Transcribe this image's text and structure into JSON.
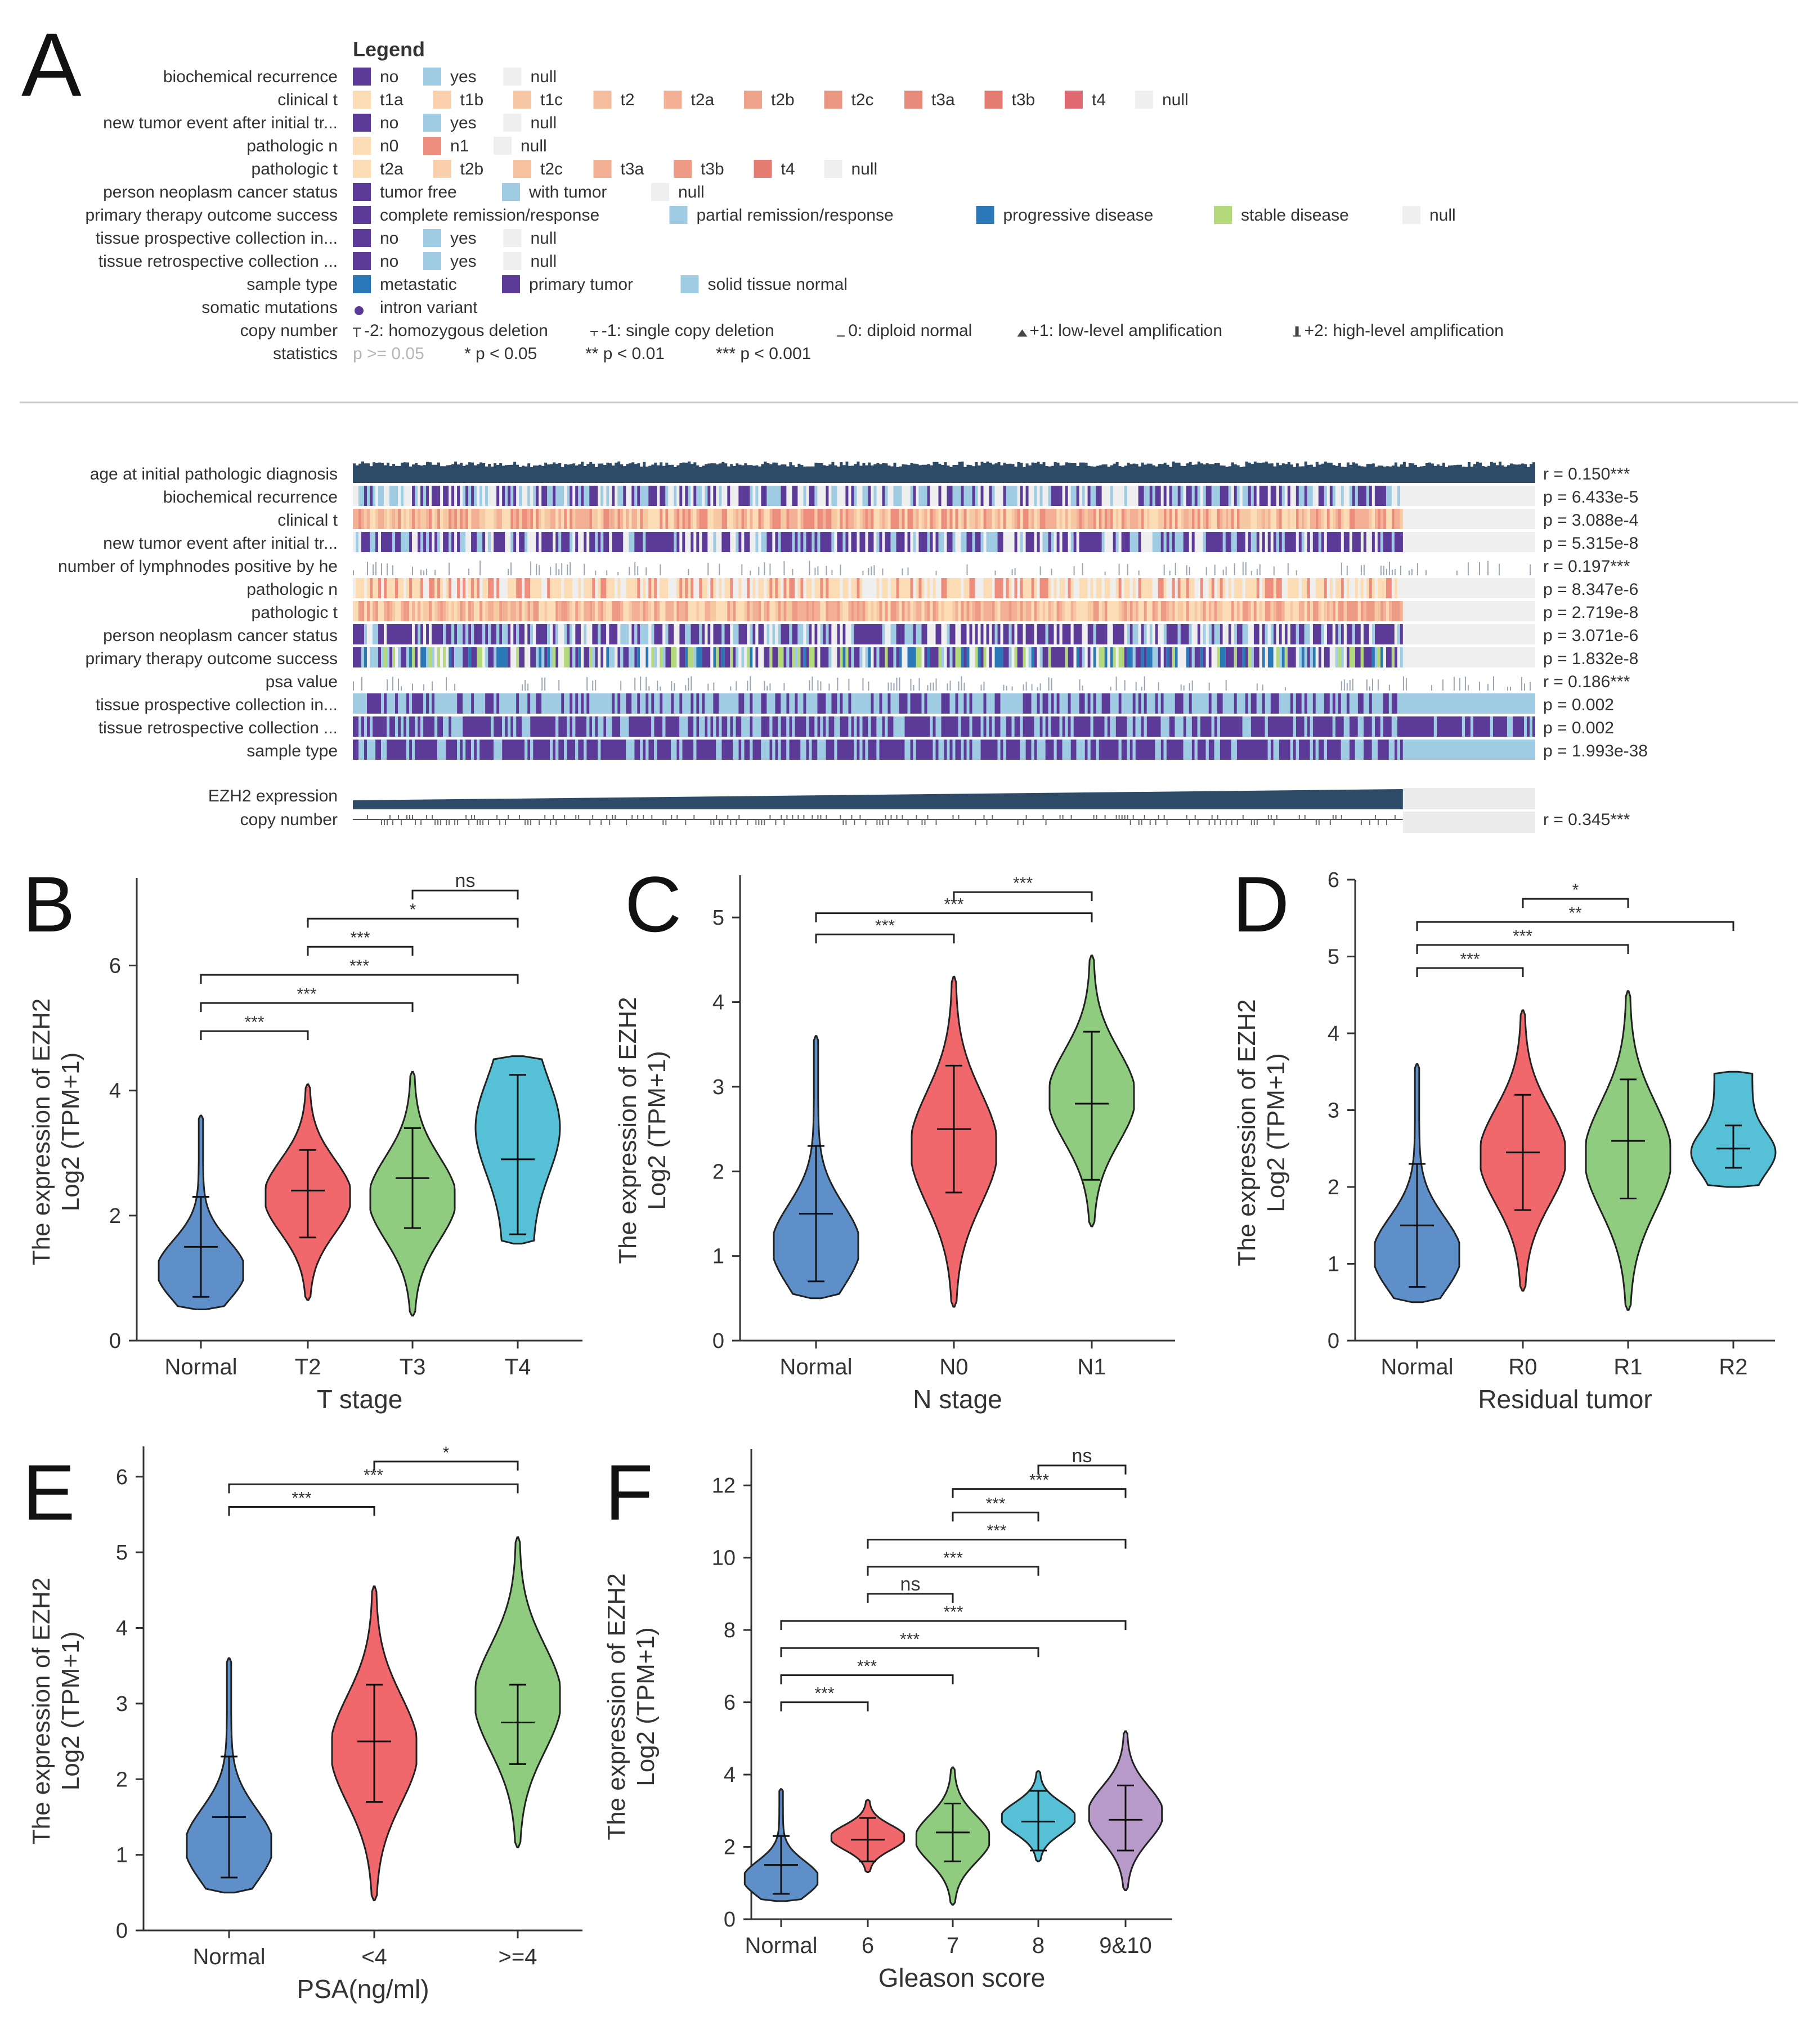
{
  "colors": {
    "purple": "#5b3a98",
    "light_blue": "#9fcbe3",
    "null": "#efefef",
    "dark_blue": "#2a78b8",
    "green_lite": "#b3d97a",
    "peach1": "#fbdcb5",
    "peach2": "#f7c9a3",
    "peach3": "#f4b38e",
    "salmon1": "#f0a08a",
    "salmon2": "#ec8d7d",
    "salmon3": "#e57c73",
    "red1": "#e46c72",
    "red2": "#e05d66",
    "navy": "#2d4a66",
    "violin_normal": "#5e8fc9",
    "violin_red": "#f0686b",
    "violin_green": "#8fcc7f",
    "violin_cyan": "#55c0d6",
    "violin_purple": "#b79ac9"
  },
  "panelA": {
    "label": "A",
    "legend_title": "Legend",
    "legend_rows": [
      {
        "name": "biochemical recurrence",
        "items": [
          {
            "label": "no",
            "color": "#5b3a98"
          },
          {
            "label": "yes",
            "color": "#9fcbe3"
          },
          {
            "label": "null",
            "color": "#efefef"
          }
        ]
      },
      {
        "name": "clinical t",
        "items": [
          {
            "label": "t1a",
            "color": "#fbdcb5"
          },
          {
            "label": "t1b",
            "color": "#fbd1ad"
          },
          {
            "label": "t1c",
            "color": "#f8c7a5"
          },
          {
            "label": "t2",
            "color": "#f5bc9d"
          },
          {
            "label": "t2a",
            "color": "#f3b094"
          },
          {
            "label": "t2b",
            "color": "#f0a48c"
          },
          {
            "label": "t2c",
            "color": "#ec9784"
          },
          {
            "label": "t3a",
            "color": "#e88a7c"
          },
          {
            "label": "t3b",
            "color": "#e57c74"
          },
          {
            "label": "t4",
            "color": "#e06870"
          },
          {
            "label": "null",
            "color": "#efefef"
          }
        ]
      },
      {
        "name": "new tumor event after initial tr...",
        "items": [
          {
            "label": "no",
            "color": "#5b3a98"
          },
          {
            "label": "yes",
            "color": "#9fcbe3"
          },
          {
            "label": "null",
            "color": "#efefef"
          }
        ]
      },
      {
        "name": "pathologic n",
        "items": [
          {
            "label": "n0",
            "color": "#fbdcb5"
          },
          {
            "label": "n1",
            "color": "#ec8d7d"
          },
          {
            "label": "null",
            "color": "#efefef"
          }
        ]
      },
      {
        "name": "pathologic t",
        "items": [
          {
            "label": "t2a",
            "color": "#fbdcb5"
          },
          {
            "label": "t2b",
            "color": "#f9cfab"
          },
          {
            "label": "t2c",
            "color": "#f6c2a0"
          },
          {
            "label": "t3a",
            "color": "#f3b094"
          },
          {
            "label": "t3b",
            "color": "#ee9b86"
          },
          {
            "label": "t4",
            "color": "#e57c74"
          },
          {
            "label": "null",
            "color": "#efefef"
          }
        ]
      },
      {
        "name": "person neoplasm cancer status",
        "items": [
          {
            "label": "tumor free",
            "color": "#5b3a98"
          },
          {
            "label": "with tumor",
            "color": "#9fcbe3"
          },
          {
            "label": "null",
            "color": "#efefef"
          }
        ]
      },
      {
        "name": "primary therapy outcome success",
        "items": [
          {
            "label": "complete remission/response",
            "color": "#5b3a98"
          },
          {
            "label": "partial remission/response",
            "color": "#9fcbe3"
          },
          {
            "label": "progressive disease",
            "color": "#2a78b8"
          },
          {
            "label": "stable disease",
            "color": "#b3d97a"
          },
          {
            "label": "null",
            "color": "#efefef"
          }
        ]
      },
      {
        "name": "tissue prospective collection in...",
        "items": [
          {
            "label": "no",
            "color": "#5b3a98"
          },
          {
            "label": "yes",
            "color": "#9fcbe3"
          },
          {
            "label": "null",
            "color": "#efefef"
          }
        ]
      },
      {
        "name": "tissue retrospective collection ...",
        "items": [
          {
            "label": "no",
            "color": "#5b3a98"
          },
          {
            "label": "yes",
            "color": "#9fcbe3"
          },
          {
            "label": "null",
            "color": "#efefef"
          }
        ]
      },
      {
        "name": "sample type",
        "items": [
          {
            "label": "metastatic",
            "color": "#2a78b8"
          },
          {
            "label": "primary tumor",
            "color": "#5b3a98"
          },
          {
            "label": "solid tissue normal",
            "color": "#9fcbe3"
          }
        ]
      },
      {
        "name": "somatic mutations",
        "items": [
          {
            "label": "intron variant",
            "color": "#5b3a98",
            "shape": "dot"
          }
        ]
      }
    ],
    "copy_number_name": "copy number",
    "copy_number_text": "-2: homozygous deletion  -1: single copy deletion  0: diploid normal  +1: low-level amplification  +2: high-level amplification",
    "copy_number_items": [
      "-2: homozygous deletion",
      "-1: single copy deletion",
      "0: diploid normal",
      "+1: low-level amplification",
      "+2: high-level amplification"
    ],
    "statistics_name": "statistics",
    "statistics_items": [
      "p >= 0.05",
      "* p < 0.05",
      "** p < 0.01",
      "*** p < 0.001"
    ],
    "heatmap_tracks": [
      {
        "name": "age at initial pathologic diagnosis",
        "stat": "r = 0.150***",
        "kind": "bars"
      },
      {
        "name": "biochemical recurrence",
        "stat": "p = 6.433e-5",
        "kind": "cat",
        "palette": [
          "#5b3a98",
          "#9fcbe3",
          "#efefef"
        ]
      },
      {
        "name": "clinical t",
        "stat": "p = 3.088e-4",
        "kind": "cat",
        "palette": [
          "#f3b094",
          "#f7c9a3",
          "#ec8d7d",
          "#fbdcb5"
        ]
      },
      {
        "name": "new tumor event after initial tr...",
        "stat": "p = 5.315e-8",
        "kind": "cat",
        "palette": [
          "#5b3a98",
          "#5b3a98",
          "#9fcbe3",
          "#efefef"
        ]
      },
      {
        "name": "number of lymphnodes positive by he",
        "stat": "r = 0.197***",
        "kind": "sparse"
      },
      {
        "name": "pathologic n",
        "stat": "p = 8.347e-6",
        "kind": "cat",
        "palette": [
          "#fbdcb5",
          "#fbdcb5",
          "#ec8d7d",
          "#efefef"
        ]
      },
      {
        "name": "pathologic t",
        "stat": "p = 2.719e-8",
        "kind": "cat",
        "palette": [
          "#f7c9a3",
          "#f3b094",
          "#ee9b86",
          "#fbdcb5"
        ]
      },
      {
        "name": "person neoplasm cancer status",
        "stat": "p = 3.071e-6",
        "kind": "cat",
        "palette": [
          "#5b3a98",
          "#5b3a98",
          "#9fcbe3",
          "#efefef"
        ]
      },
      {
        "name": "primary therapy outcome success",
        "stat": "p = 1.832e-8",
        "kind": "cat",
        "palette": [
          "#5b3a98",
          "#5b3a98",
          "#9fcbe3",
          "#2a78b8",
          "#b3d97a",
          "#efefef"
        ]
      },
      {
        "name": "psa value",
        "stat": "r = 0.186***",
        "kind": "sparse"
      },
      {
        "name": "tissue prospective collection in...",
        "stat": "p = 0.002",
        "kind": "cat",
        "palette": [
          "#5b3a98",
          "#9fcbe3",
          "#9fcbe3"
        ]
      },
      {
        "name": "tissue retrospective collection ...",
        "stat": "p = 0.002",
        "kind": "cat",
        "palette": [
          "#5b3a98",
          "#5b3a98",
          "#9fcbe3"
        ]
      },
      {
        "name": "sample type",
        "stat": "p = 1.993e-38",
        "kind": "cat",
        "palette": [
          "#5b3a98",
          "#5b3a98",
          "#9fcbe3"
        ]
      }
    ],
    "expression_track": {
      "name": "EZH2 expression",
      "stat": ""
    },
    "copy_track": {
      "name": "copy number",
      "stat": "r = 0.345***"
    }
  },
  "chart_data": [
    {
      "panel": "B",
      "type": "violin",
      "xlabel": "T stage",
      "ylabel_line1": "The expression of EZH2",
      "ylabel_line2": "Log2 (TPM+1)",
      "ylim": [
        0,
        7.4
      ],
      "yticks": [
        0,
        2,
        4,
        6
      ],
      "ytick_labels": [
        "0",
        "2",
        "4",
        "6"
      ],
      "categories": [
        "Normal",
        "T2",
        "T3",
        "T4"
      ],
      "groups": [
        {
          "name": "Normal",
          "min": 0.5,
          "max": 3.6,
          "median": 1.5,
          "q1": 0.7,
          "q3": 2.3,
          "color": "#5e8fc9",
          "shape": "bottom"
        },
        {
          "name": "T2",
          "min": 0.65,
          "max": 4.1,
          "median": 2.4,
          "q1": 1.65,
          "q3": 3.05,
          "color": "#f0686b",
          "shape": "mid"
        },
        {
          "name": "T3",
          "min": 0.4,
          "max": 4.3,
          "median": 2.6,
          "q1": 1.8,
          "q3": 3.4,
          "color": "#8fcc7f",
          "shape": "mid"
        },
        {
          "name": "T4",
          "min": 1.55,
          "max": 4.55,
          "median": 2.9,
          "q1": 1.7,
          "q3": 4.25,
          "color": "#55c0d6",
          "shape": "top"
        }
      ],
      "comparisons": [
        {
          "from": 0,
          "to": 1,
          "label": "***",
          "y": 4.95
        },
        {
          "from": 0,
          "to": 2,
          "label": "***",
          "y": 5.4
        },
        {
          "from": 0,
          "to": 3,
          "label": "***",
          "y": 5.85
        },
        {
          "from": 1,
          "to": 2,
          "label": "***",
          "y": 6.3
        },
        {
          "from": 1,
          "to": 3,
          "label": "*",
          "y": 6.75
        },
        {
          "from": 2,
          "to": 3,
          "label": "ns",
          "y": 7.2
        }
      ]
    },
    {
      "panel": "C",
      "type": "violin",
      "xlabel": "N stage",
      "ylabel_line1": "The expression of EZH2",
      "ylabel_line2": "Log2 (TPM+1)",
      "ylim": [
        0,
        5.5
      ],
      "yticks": [
        0,
        1,
        2,
        3,
        4,
        5
      ],
      "ytick_labels": [
        "0",
        "1",
        "2",
        "3",
        "4",
        "5"
      ],
      "categories": [
        "Normal",
        "N0",
        "N1"
      ],
      "groups": [
        {
          "name": "Normal",
          "min": 0.5,
          "max": 3.6,
          "median": 1.5,
          "q1": 0.7,
          "q3": 2.3,
          "color": "#5e8fc9",
          "shape": "bottom"
        },
        {
          "name": "N0",
          "min": 0.4,
          "max": 4.3,
          "median": 2.5,
          "q1": 1.75,
          "q3": 3.25,
          "color": "#f0686b",
          "shape": "mid"
        },
        {
          "name": "N1",
          "min": 1.35,
          "max": 4.55,
          "median": 2.8,
          "q1": 1.9,
          "q3": 3.65,
          "color": "#8fcc7f",
          "shape": "mid"
        }
      ],
      "comparisons": [
        {
          "from": 0,
          "to": 1,
          "label": "***",
          "y": 4.8
        },
        {
          "from": 0,
          "to": 2,
          "label": "***",
          "y": 5.05
        },
        {
          "from": 1,
          "to": 2,
          "label": "***",
          "y": 5.3
        }
      ]
    },
    {
      "panel": "D",
      "type": "violin",
      "xlabel": "Residual tumor",
      "ylabel_line1": "The expression of EZH2",
      "ylabel_line2": "Log2 (TPM+1)",
      "ylim": [
        0,
        6
      ],
      "yticks": [
        0,
        1,
        2,
        3,
        4,
        5,
        6
      ],
      "ytick_labels": [
        "0",
        "1",
        "2",
        "3",
        "4",
        "5",
        "6"
      ],
      "categories": [
        "Normal",
        "R0",
        "R1",
        "R2"
      ],
      "groups": [
        {
          "name": "Normal",
          "min": 0.5,
          "max": 3.6,
          "median": 1.5,
          "q1": 0.7,
          "q3": 2.3,
          "color": "#5e8fc9",
          "shape": "bottom"
        },
        {
          "name": "R0",
          "min": 0.65,
          "max": 4.3,
          "median": 2.45,
          "q1": 1.7,
          "q3": 3.2,
          "color": "#f0686b",
          "shape": "mid"
        },
        {
          "name": "R1",
          "min": 0.4,
          "max": 4.55,
          "median": 2.6,
          "q1": 1.85,
          "q3": 3.4,
          "color": "#8fcc7f",
          "shape": "mid"
        },
        {
          "name": "R2",
          "min": 2.0,
          "max": 3.5,
          "median": 2.5,
          "q1": 2.25,
          "q3": 2.8,
          "color": "#55c0d6",
          "shape": "flat"
        }
      ],
      "comparisons": [
        {
          "from": 0,
          "to": 1,
          "label": "***",
          "y": 4.85
        },
        {
          "from": 0,
          "to": 2,
          "label": "***",
          "y": 5.15
        },
        {
          "from": 0,
          "to": 3,
          "label": "**",
          "y": 5.45
        },
        {
          "from": 1,
          "to": 2,
          "label": "*",
          "y": 5.75
        }
      ]
    },
    {
      "panel": "E",
      "type": "violin",
      "xlabel": "PSA(ng/ml)",
      "ylabel_line1": "The expression of EZH2",
      "ylabel_line2": "Log2 (TPM+1)",
      "ylim": [
        0,
        6.4
      ],
      "yticks": [
        0,
        1,
        2,
        3,
        4,
        5,
        6
      ],
      "ytick_labels": [
        "0",
        "1",
        "2",
        "3",
        "4",
        "5",
        "6"
      ],
      "categories": [
        "Normal",
        "<4",
        ">=4"
      ],
      "groups": [
        {
          "name": "Normal",
          "min": 0.5,
          "max": 3.6,
          "median": 1.5,
          "q1": 0.7,
          "q3": 2.3,
          "color": "#5e8fc9",
          "shape": "bottom"
        },
        {
          "name": "<4",
          "min": 0.4,
          "max": 4.55,
          "median": 2.5,
          "q1": 1.7,
          "q3": 3.25,
          "color": "#f0686b",
          "shape": "mid"
        },
        {
          "name": ">=4",
          "min": 1.1,
          "max": 5.2,
          "median": 2.75,
          "q1": 2.2,
          "q3": 3.25,
          "color": "#8fcc7f",
          "shape": "mid"
        }
      ],
      "comparisons": [
        {
          "from": 0,
          "to": 1,
          "label": "***",
          "y": 5.6
        },
        {
          "from": 0,
          "to": 2,
          "label": "***",
          "y": 5.9
        },
        {
          "from": 1,
          "to": 2,
          "label": "*",
          "y": 6.2
        }
      ]
    },
    {
      "panel": "F",
      "type": "violin",
      "xlabel": "Gleason score",
      "ylabel_line1": "The expression of EZH2",
      "ylabel_line2": "Log2 (TPM+1)",
      "ylim": [
        0,
        13
      ],
      "yticks": [
        0,
        2,
        4,
        6,
        8,
        10,
        12
      ],
      "ytick_labels": [
        "0",
        "2",
        "4",
        "6",
        "8",
        "10",
        "12"
      ],
      "categories": [
        "Normal",
        "6",
        "7",
        "8",
        "9&10"
      ],
      "groups": [
        {
          "name": "Normal",
          "min": 0.5,
          "max": 3.6,
          "median": 1.5,
          "q1": 0.7,
          "q3": 2.3,
          "color": "#5e8fc9",
          "shape": "bottom"
        },
        {
          "name": "6",
          "min": 1.3,
          "max": 3.3,
          "median": 2.2,
          "q1": 1.6,
          "q3": 2.8,
          "color": "#f0686b",
          "shape": "mid"
        },
        {
          "name": "7",
          "min": 0.4,
          "max": 4.2,
          "median": 2.4,
          "q1": 1.6,
          "q3": 3.2,
          "color": "#8fcc7f",
          "shape": "mid"
        },
        {
          "name": "8",
          "min": 1.6,
          "max": 4.1,
          "median": 2.7,
          "q1": 1.9,
          "q3": 3.55,
          "color": "#55c0d6",
          "shape": "mid"
        },
        {
          "name": "9&10",
          "min": 0.8,
          "max": 5.2,
          "median": 2.75,
          "q1": 1.9,
          "q3": 3.7,
          "color": "#b79ac9",
          "shape": "mid"
        }
      ],
      "comparisons": [
        {
          "from": 0,
          "to": 1,
          "label": "***",
          "y": 6.0
        },
        {
          "from": 0,
          "to": 2,
          "label": "***",
          "y": 6.75
        },
        {
          "from": 0,
          "to": 3,
          "label": "***",
          "y": 7.5
        },
        {
          "from": 0,
          "to": 4,
          "label": "***",
          "y": 8.25
        },
        {
          "from": 1,
          "to": 2,
          "label": "ns",
          "y": 9.0
        },
        {
          "from": 1,
          "to": 3,
          "label": "***",
          "y": 9.75
        },
        {
          "from": 1,
          "to": 4,
          "label": "***",
          "y": 10.5
        },
        {
          "from": 2,
          "to": 3,
          "label": "***",
          "y": 11.25
        },
        {
          "from": 2,
          "to": 4,
          "label": "***",
          "y": 11.9
        },
        {
          "from": 3,
          "to": 4,
          "label": "ns",
          "y": 12.55
        }
      ]
    }
  ]
}
